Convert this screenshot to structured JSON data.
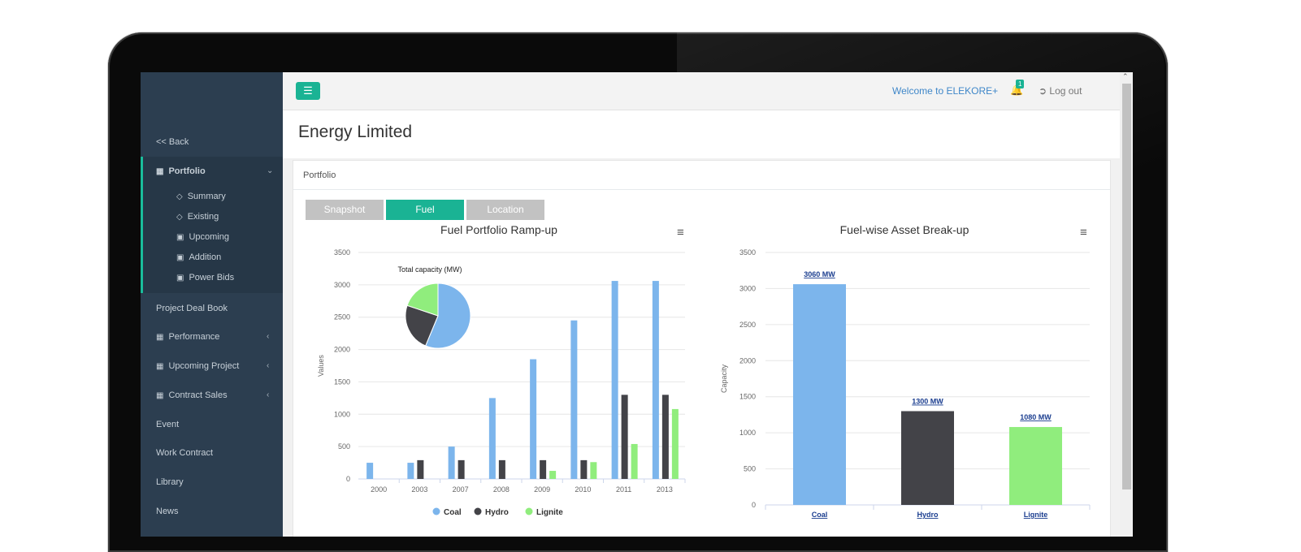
{
  "sidebar": {
    "back": "<< Back",
    "portfolio": "Portfolio",
    "sub_items": [
      {
        "label": "Summary",
        "icon": "diamond-icon"
      },
      {
        "label": "Existing",
        "icon": "diamond-icon"
      },
      {
        "label": "Upcoming",
        "icon": "book-icon"
      },
      {
        "label": "Addition",
        "icon": "book-icon"
      },
      {
        "label": "Power Bids",
        "icon": "book-icon"
      }
    ],
    "items": [
      {
        "label": "Project Deal Book"
      },
      {
        "label": "Performance",
        "icon": "grid-icon",
        "chevron": true
      },
      {
        "label": "Upcoming Project",
        "icon": "grid-icon",
        "chevron": true
      },
      {
        "label": "Contract Sales",
        "icon": "grid-icon",
        "chevron": true
      },
      {
        "label": "Event"
      },
      {
        "label": "Work Contract"
      },
      {
        "label": "Library"
      },
      {
        "label": "News"
      }
    ]
  },
  "header": {
    "welcome": "Welcome to ELEKORE+",
    "notification_count": "1",
    "logout": "Log out"
  },
  "page": {
    "title": "Energy Limited",
    "panel_title": "Portfolio",
    "tabs": [
      {
        "label": "Snapshot",
        "active": false
      },
      {
        "label": "Fuel",
        "active": true
      },
      {
        "label": "Location",
        "active": false
      }
    ]
  },
  "colors": {
    "accent": "#1ab394",
    "sidebar": "#2c3e50",
    "coal": "#7cb5ec",
    "hydro": "#434348",
    "lignite": "#90ed7d"
  },
  "chart_data": [
    {
      "type": "bar",
      "title": "Fuel Portfolio Ramp-up",
      "ylabel": "Values",
      "ylim": [
        0,
        3500
      ],
      "yticks": [
        0,
        500,
        1000,
        1500,
        2000,
        2500,
        3000,
        3500
      ],
      "categories": [
        "2000",
        "2003",
        "2007",
        "2008",
        "2009",
        "2010",
        "2011",
        "2013"
      ],
      "series": [
        {
          "name": "Coal",
          "values": [
            250,
            250,
            500,
            1250,
            1850,
            2450,
            3060,
            3060
          ]
        },
        {
          "name": "Hydro",
          "values": [
            0,
            290,
            290,
            290,
            290,
            290,
            1300,
            1300
          ]
        },
        {
          "name": "Lignite",
          "values": [
            0,
            0,
            0,
            0,
            125,
            260,
            540,
            1080
          ]
        }
      ],
      "legend": "bottom",
      "inset_pie": {
        "title": "Total capacity (MW)",
        "slices": [
          {
            "name": "Coal",
            "value": 3060
          },
          {
            "name": "Hydro",
            "value": 1300
          },
          {
            "name": "Lignite",
            "value": 1080
          }
        ]
      }
    },
    {
      "type": "bar",
      "title": "Fuel-wise Asset Break-up",
      "ylabel": "Capacity",
      "ylim": [
        0,
        3500
      ],
      "yticks": [
        0,
        500,
        1000,
        1500,
        2000,
        2500,
        3000,
        3500
      ],
      "categories": [
        "Coal",
        "Hydro",
        "Lignite"
      ],
      "values": [
        3060,
        1300,
        1080
      ],
      "data_labels": [
        "3060 MW",
        "1300 MW",
        "1080 MW"
      ]
    }
  ]
}
